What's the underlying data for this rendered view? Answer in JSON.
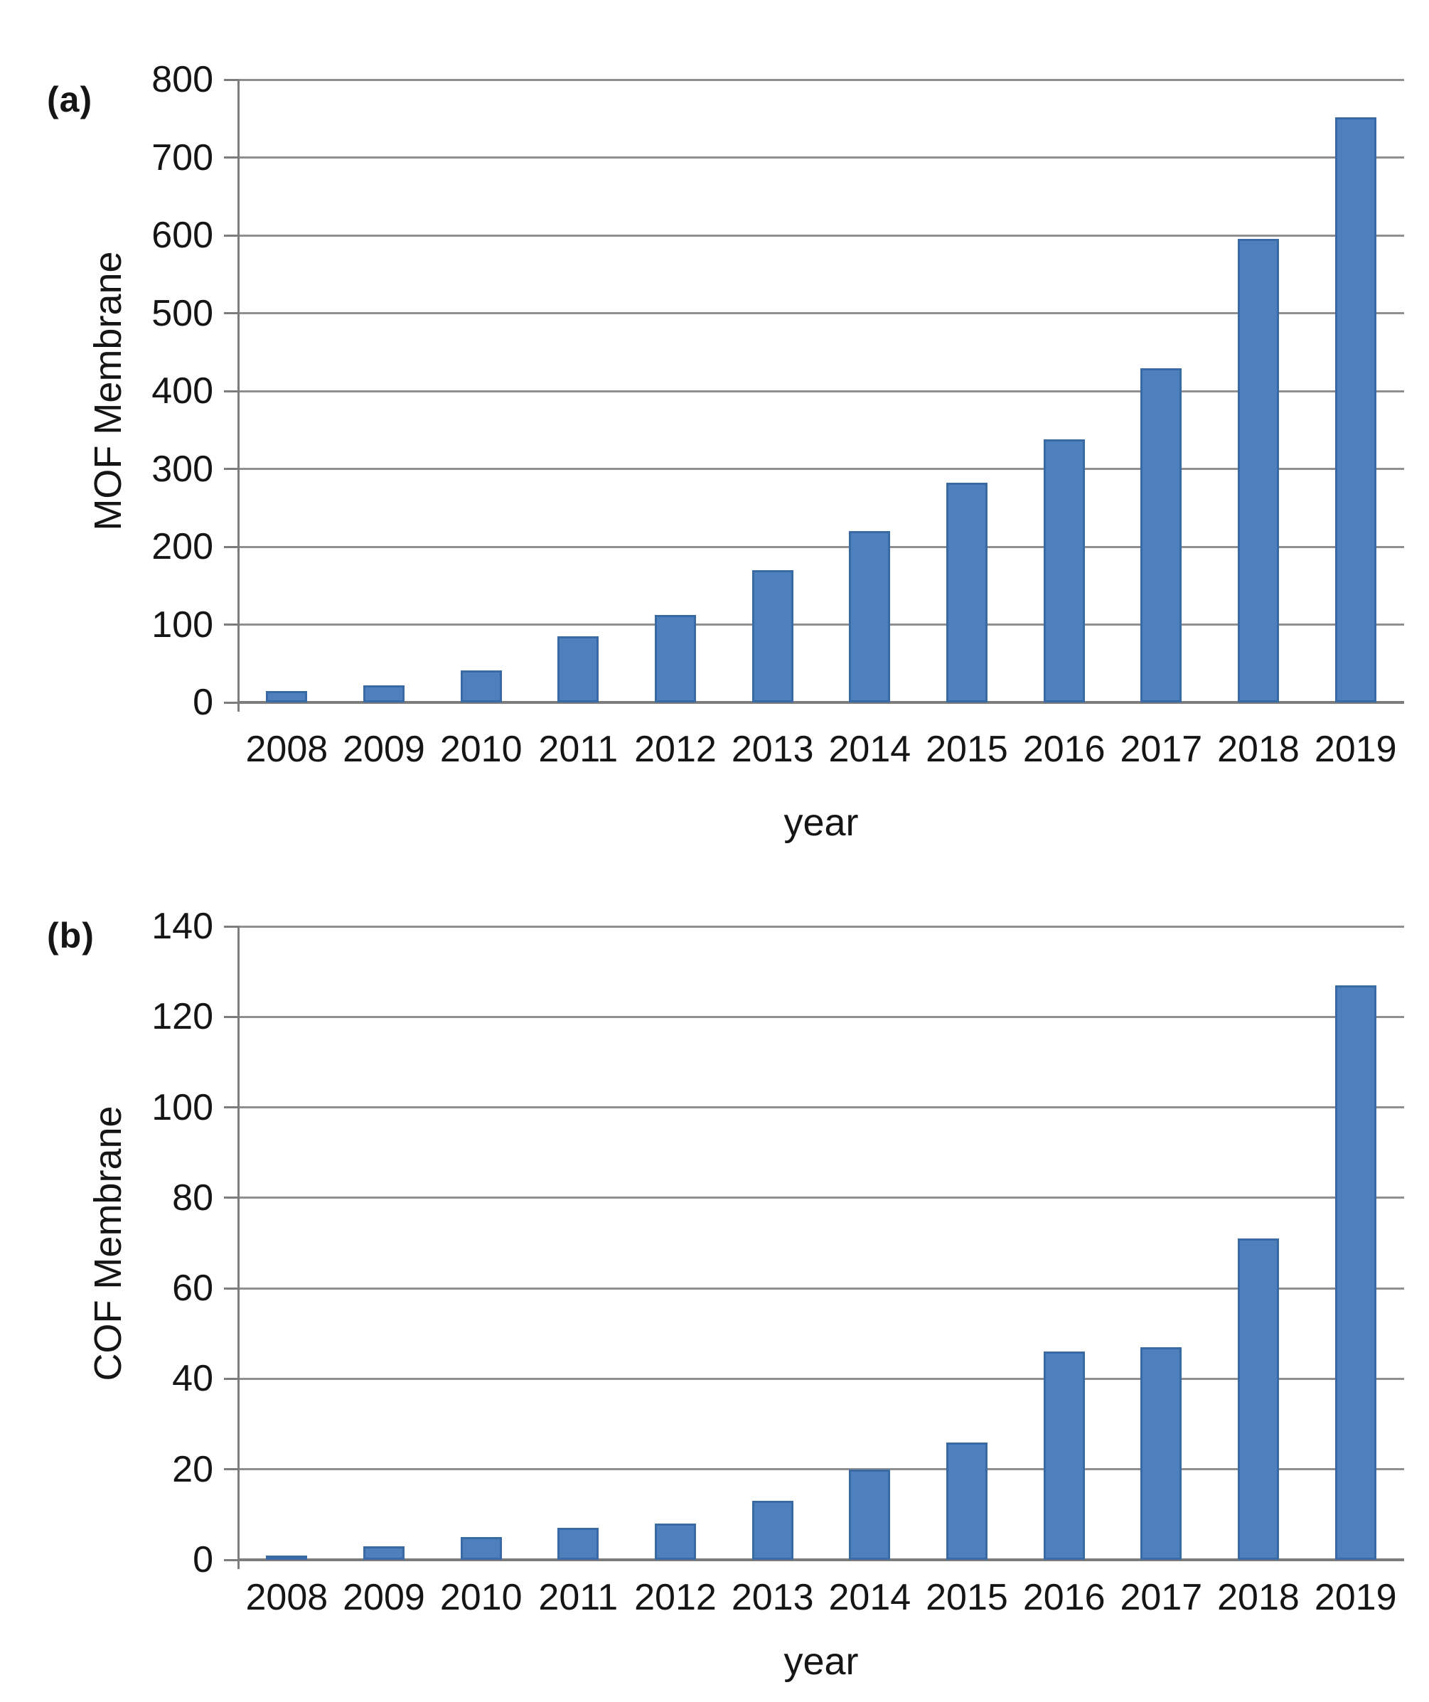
{
  "figure": {
    "background": "#ffffff"
  },
  "chart_data": [
    {
      "type": "bar",
      "panel_label": "(a)",
      "title": "",
      "categories": [
        "2008",
        "2009",
        "2010",
        "2011",
        "2012",
        "2013",
        "2014",
        "2015",
        "2016",
        "2017",
        "2018",
        "2019"
      ],
      "values": [
        15,
        22,
        41,
        85,
        112,
        170,
        220,
        282,
        338,
        429,
        595,
        752
      ],
      "xlabel": "year",
      "ylabel": "MOF Membrane",
      "ylim": [
        0,
        800
      ],
      "ytick_step": 100,
      "ytick_labels": [
        "0",
        "100",
        "200",
        "300",
        "400",
        "500",
        "600",
        "700",
        "800"
      ],
      "grid": true,
      "legend": "none",
      "bar_color": "#4d80bd",
      "bar_border_color": "#3a6aa4",
      "gridline_color": "#8f8f8f",
      "axis_color": "#7c7c7c",
      "text_color": "#151515"
    },
    {
      "type": "bar",
      "panel_label": "(b)",
      "title": "",
      "categories": [
        "2008",
        "2009",
        "2010",
        "2011",
        "2012",
        "2013",
        "2014",
        "2015",
        "2016",
        "2017",
        "2018",
        "2019"
      ],
      "values": [
        1,
        3,
        5,
        7,
        8,
        13,
        20,
        26,
        46,
        47,
        71,
        127
      ],
      "xlabel": "year",
      "ylabel": "COF Membrane",
      "ylim": [
        0,
        140
      ],
      "ytick_step": 20,
      "ytick_labels": [
        "0",
        "20",
        "40",
        "60",
        "80",
        "100",
        "120",
        "140"
      ],
      "grid": true,
      "legend": "none",
      "bar_color": "#4d80bd",
      "bar_border_color": "#3a6aa4",
      "gridline_color": "#8f8f8f",
      "axis_color": "#7c7c7c",
      "text_color": "#151515"
    }
  ]
}
